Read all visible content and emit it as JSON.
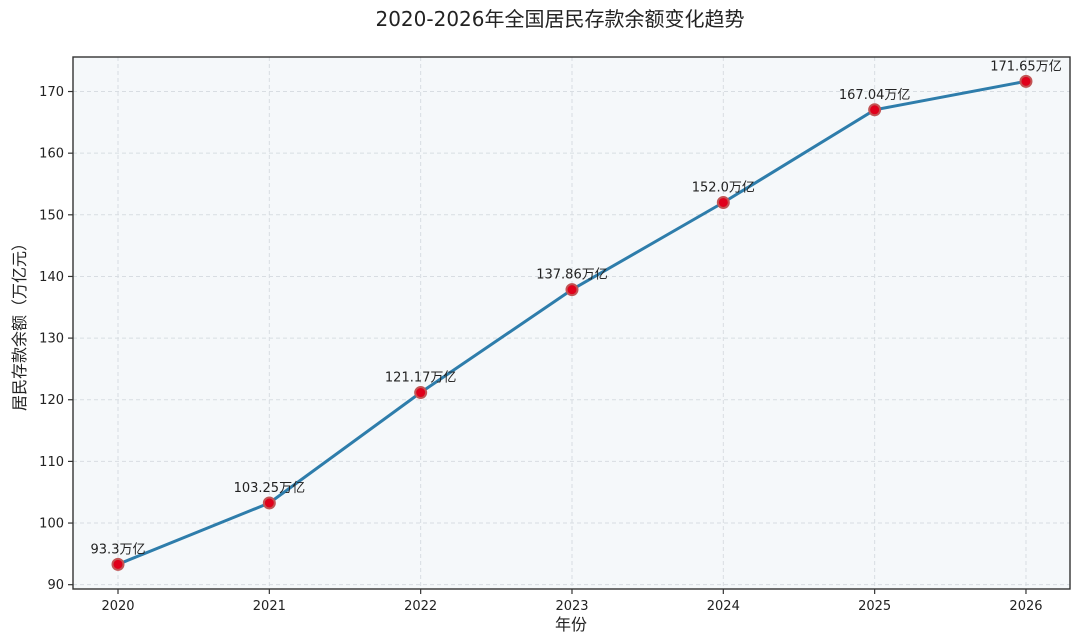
{
  "chart_data": {
    "type": "line",
    "title": "2020-2026年全国居民存款余额变化趋势",
    "xlabel": "年份",
    "ylabel": "居民存款余额（万亿元）",
    "x": [
      "2020",
      "2021",
      "2022",
      "2023",
      "2024",
      "2025",
      "2026"
    ],
    "series": [
      {
        "name": "居民存款余额",
        "values": [
          93.3,
          103.25,
          121.17,
          137.86,
          152.0,
          167.04,
          171.65
        ],
        "labels": [
          "93.3万亿",
          "103.25万亿",
          "121.17万亿",
          "137.86万亿",
          "152.0万亿",
          "167.04万亿",
          "171.65万亿"
        ]
      }
    ],
    "ylim": [
      89.3,
      175.6
    ],
    "yticks": [
      90,
      100,
      110,
      120,
      130,
      140,
      150,
      160,
      170
    ],
    "grid": true,
    "colors": {
      "line": "#2e7dab",
      "marker_fill": "#e0001b",
      "marker_edge": "#c25555",
      "plot_bg": "#f5f8fa",
      "frame": "#333333",
      "grid": "#d8dde2"
    }
  }
}
